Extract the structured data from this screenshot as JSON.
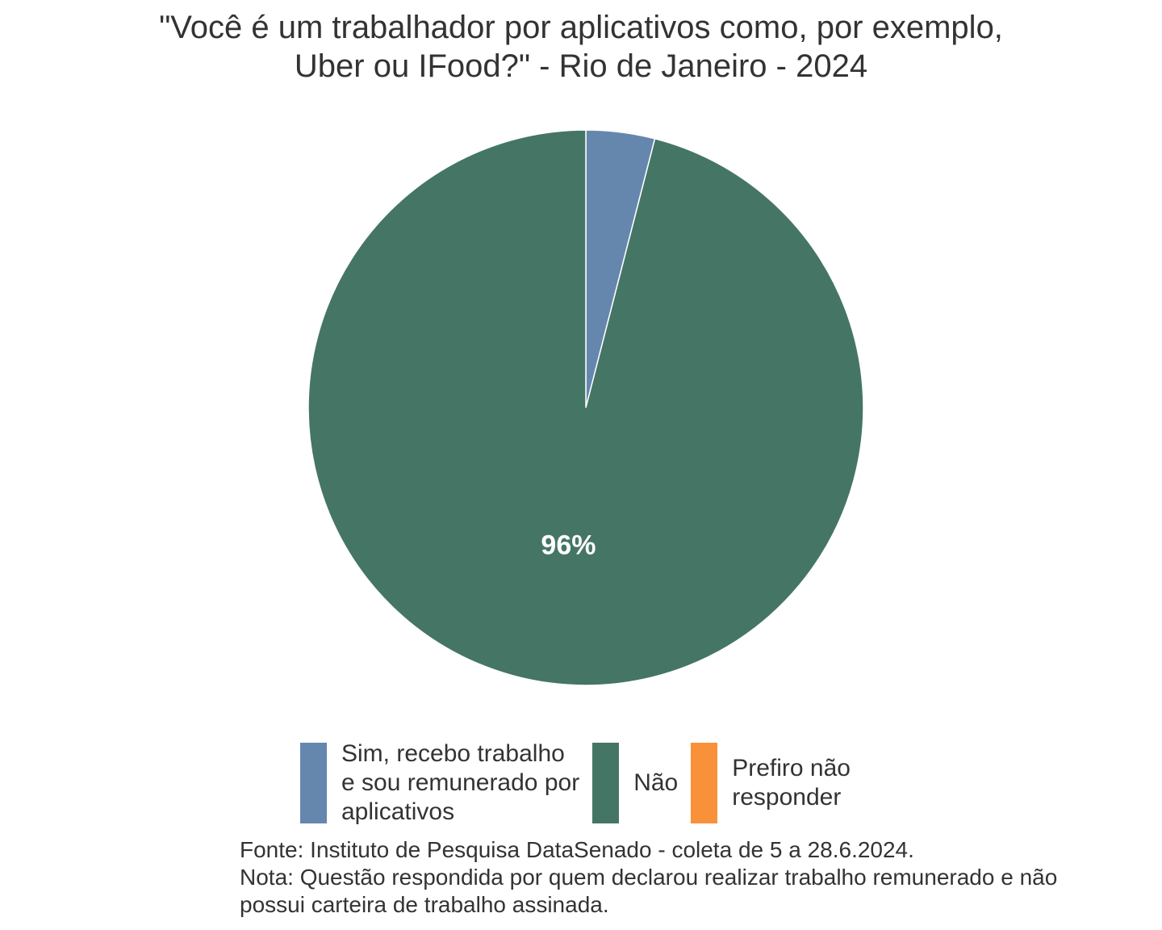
{
  "title_lines": [
    "\"Você é um trabalhador por aplicativos como, por exemplo,",
    "Uber ou IFood?\" - Rio de Janeiro - 2024"
  ],
  "chart_data": {
    "type": "pie",
    "title": "\"Você é um trabalhador por aplicativos como, por exemplo, Uber ou IFood?\" - Rio de Janeiro - 2024",
    "slices": [
      {
        "label": "Sim, recebo trabalho e sou remunerado por aplicativos",
        "value": 4,
        "color": "#6587AE"
      },
      {
        "label": "Não",
        "value": 96,
        "color": "#457565",
        "data_label": "96%"
      },
      {
        "label": "Prefiro não responder",
        "value": 0,
        "color": "#F9913A"
      }
    ],
    "legend_position": "bottom"
  },
  "legend": [
    {
      "lines": [
        "Sim, recebo trabalho",
        "e sou remunerado por",
        "aplicativos"
      ],
      "color": "#6587AE"
    },
    {
      "lines": [
        "Não"
      ],
      "color": "#457565"
    },
    {
      "lines": [
        "Prefiro não",
        "responder"
      ],
      "color": "#F9913A"
    }
  ],
  "caption": {
    "fonte": "Fonte: Instituto de Pesquisa DataSenado - coleta de 5 a 28.6.2024.",
    "nota_line1": "Nota: Questão respondida por quem declarou realizar trabalho remunerado e não",
    "nota_line2": "possui carteira de trabalho assinada."
  }
}
